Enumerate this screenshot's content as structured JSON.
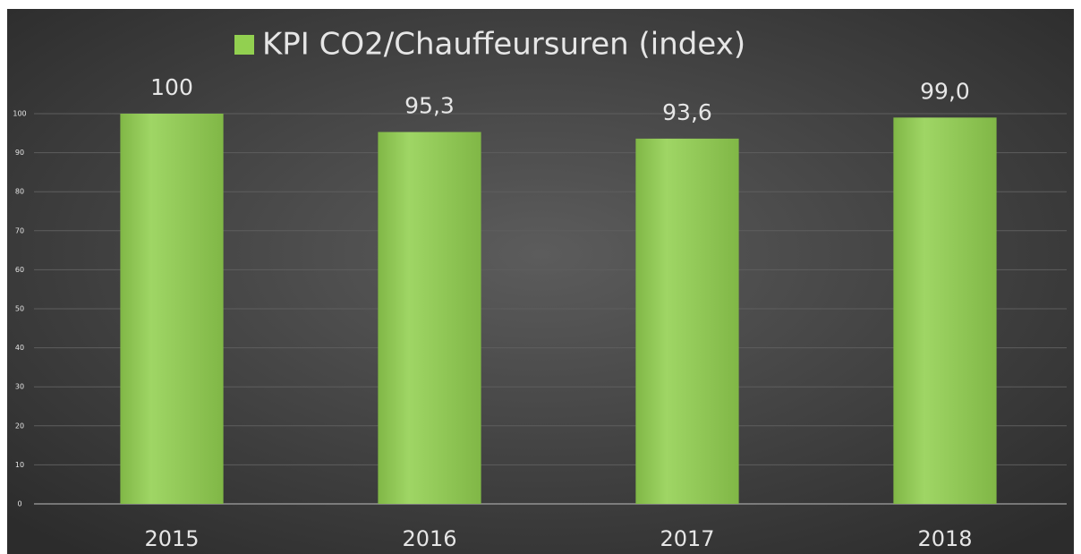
{
  "chart_data": {
    "type": "bar",
    "categories": [
      "2015",
      "2016",
      "2017",
      "2018"
    ],
    "series": [
      {
        "name": "KPI CO2/Chauffeursuren (index)",
        "color": "#92d050",
        "values": [
          100,
          95.3,
          93.6,
          99.0
        ],
        "value_labels": [
          "100",
          "95,3",
          "93,6",
          "99,0"
        ]
      }
    ],
    "ylim": [
      0,
      100
    ],
    "yticks": [
      0,
      10,
      20,
      30,
      40,
      50,
      60,
      70,
      80,
      90,
      100
    ],
    "grid": true,
    "legend": "top"
  }
}
